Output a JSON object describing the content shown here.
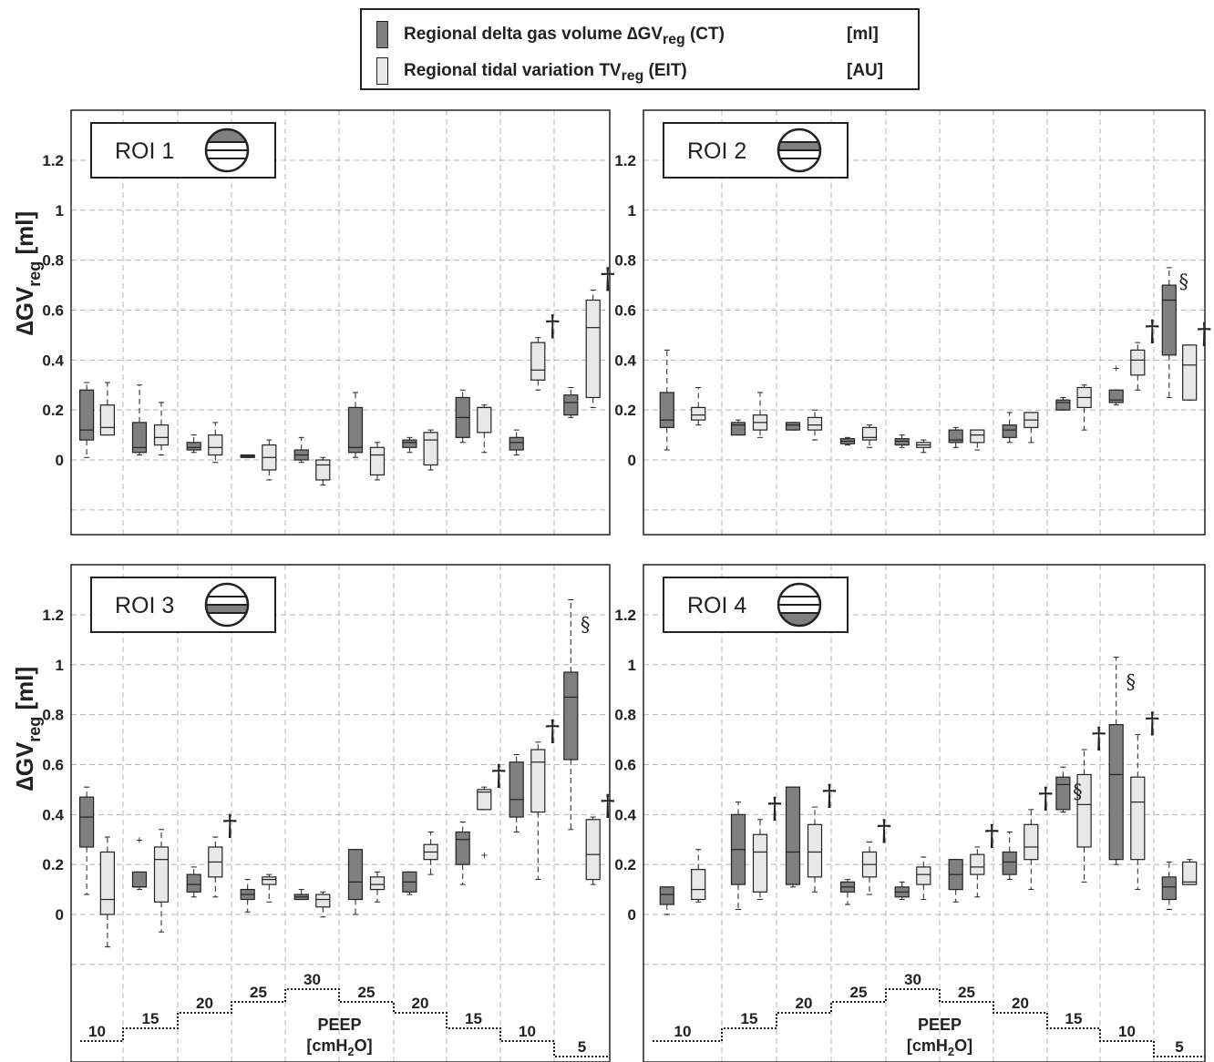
{
  "legend": {
    "items": [
      {
        "label_main": "Regional delta gas volume ∆GV",
        "label_sub": "reg",
        "label_tail": " (CT)",
        "unit": "[ml]",
        "color": "#808080"
      },
      {
        "label_main": "Regional tidal variation TV",
        "label_sub": "reg",
        "label_tail": " (EIT)",
        "unit": "[AU]",
        "color": "#e8e8e8"
      }
    ]
  },
  "colors": {
    "ct": "#808080",
    "eit": "#e8e8e8",
    "stroke": "#222222",
    "grid": "#b5b5b5"
  },
  "y_label_main": "∆GV",
  "y_label_sub": "reg",
  "y_label_unit": " [ml]",
  "peep_label": "PEEP",
  "peep_unit_main": "[cmH",
  "peep_unit_sub": "2",
  "peep_unit_tail": "O]",
  "chart_data": [
    {
      "type": "box",
      "title": "ROI 1",
      "roi_icon": "lung-section-icon-top",
      "ylim": [
        -0.3,
        1.4
      ],
      "y_ticks": [
        0,
        0.2,
        0.4,
        0.6,
        0.8,
        1,
        1.2
      ],
      "peep": [
        10,
        15,
        20,
        25,
        30,
        25,
        20,
        15,
        10,
        5
      ],
      "series": [
        {
          "name": "Regional delta gas volume (CT)",
          "boxes": [
            [
              0.01,
              0.08,
              0.12,
              0.28,
              0.31
            ],
            [
              0.02,
              0.03,
              0.05,
              0.15,
              0.3
            ],
            [
              0.03,
              0.04,
              0.05,
              0.07,
              0.1
            ],
            [
              0.01,
              0.01,
              0.015,
              0.02,
              0.02
            ],
            [
              -0.01,
              0.0,
              0.02,
              0.04,
              0.09
            ],
            [
              0.01,
              0.03,
              0.05,
              0.21,
              0.27
            ],
            [
              0.03,
              0.05,
              0.07,
              0.08,
              0.09
            ],
            [
              0.07,
              0.09,
              0.17,
              0.25,
              0.28
            ],
            [
              0.02,
              0.04,
              0.07,
              0.09,
              0.12
            ],
            [
              0.17,
              0.18,
              0.23,
              0.26,
              0.29
            ]
          ]
        },
        {
          "name": "Regional tidal variation (EIT)",
          "boxes": [
            [
              0.1,
              0.1,
              0.13,
              0.22,
              0.31
            ],
            [
              0.02,
              0.06,
              0.09,
              0.14,
              0.23
            ],
            [
              -0.01,
              0.02,
              0.05,
              0.1,
              0.15
            ],
            [
              -0.08,
              -0.04,
              0.01,
              0.06,
              0.08
            ],
            [
              -0.1,
              -0.08,
              -0.02,
              0.0,
              0.01
            ],
            [
              -0.08,
              -0.06,
              0.02,
              0.05,
              0.07
            ],
            [
              -0.04,
              -0.02,
              0.08,
              0.11,
              0.12
            ],
            [
              0.03,
              0.11,
              0.21,
              0.21,
              0.22
            ],
            [
              0.28,
              0.32,
              0.36,
              0.47,
              0.49
            ],
            [
              0.21,
              0.25,
              0.53,
              0.64,
              0.68
            ]
          ]
        }
      ],
      "marks": [
        {
          "group": 8,
          "series": 1,
          "symbol": "†"
        },
        {
          "group": 9,
          "series": 1,
          "symbol": "†"
        }
      ],
      "outliers": []
    },
    {
      "type": "box",
      "title": "ROI 2",
      "roi_icon": "lung-section-icon-upper-middle",
      "ylim": [
        -0.3,
        1.4
      ],
      "y_ticks": [
        0,
        0.2,
        0.4,
        0.6,
        0.8,
        1,
        1.2
      ],
      "peep": [
        10,
        15,
        20,
        25,
        30,
        25,
        20,
        15,
        10,
        5
      ],
      "series": [
        {
          "name": "Regional delta gas volume (CT)",
          "boxes": [
            [
              0.04,
              0.13,
              0.16,
              0.27,
              0.44
            ],
            [
              0.1,
              0.1,
              0.14,
              0.15,
              0.16
            ],
            [
              0.12,
              0.12,
              0.14,
              0.15,
              0.15
            ],
            [
              0.06,
              0.065,
              0.075,
              0.085,
              0.09
            ],
            [
              0.05,
              0.06,
              0.075,
              0.085,
              0.1
            ],
            [
              0.05,
              0.07,
              0.08,
              0.12,
              0.13
            ],
            [
              0.07,
              0.09,
              0.12,
              0.14,
              0.19
            ],
            [
              0.2,
              0.2,
              0.23,
              0.24,
              0.25
            ],
            [
              0.22,
              0.23,
              0.24,
              0.28,
              0.28
            ],
            [
              0.25,
              0.42,
              0.64,
              0.7,
              0.77
            ]
          ]
        },
        {
          "name": "Regional tidal variation (EIT)",
          "boxes": [
            [
              0.14,
              0.16,
              0.18,
              0.21,
              0.29
            ],
            [
              0.09,
              0.12,
              0.15,
              0.18,
              0.27
            ],
            [
              0.08,
              0.12,
              0.14,
              0.17,
              0.2
            ],
            [
              0.05,
              0.08,
              0.09,
              0.13,
              0.14
            ],
            [
              0.03,
              0.05,
              0.06,
              0.07,
              0.08
            ],
            [
              0.04,
              0.07,
              0.1,
              0.12,
              0.12
            ],
            [
              0.07,
              0.13,
              0.16,
              0.19,
              0.19
            ],
            [
              0.12,
              0.21,
              0.25,
              0.29,
              0.3
            ],
            [
              0.28,
              0.34,
              0.4,
              0.44,
              0.47
            ],
            [
              0.24,
              0.24,
              0.38,
              0.46,
              0.46
            ]
          ]
        }
      ],
      "marks": [
        {
          "group": 9,
          "series": 0,
          "symbol": "§"
        },
        {
          "group": 8,
          "series": 1,
          "symbol": "†"
        },
        {
          "group": 9,
          "series": 1,
          "symbol": "†"
        }
      ],
      "outliers": [
        {
          "group": 8,
          "series": 0,
          "value": 0.37
        }
      ]
    },
    {
      "type": "box",
      "title": "ROI 3",
      "roi_icon": "lung-section-icon-lower-middle",
      "ylim": [
        -0.3,
        1.4
      ],
      "y_ticks": [
        0,
        0.2,
        0.4,
        0.6,
        0.8,
        1,
        1.2
      ],
      "peep": [
        10,
        15,
        20,
        25,
        30,
        25,
        20,
        15,
        10,
        5
      ],
      "series": [
        {
          "name": "Regional delta gas volume (CT)",
          "boxes": [
            [
              0.08,
              0.27,
              0.39,
              0.47,
              0.51
            ],
            [
              0.1,
              0.11,
              0.11,
              0.17,
              0.17
            ],
            [
              0.07,
              0.09,
              0.12,
              0.16,
              0.19
            ],
            [
              0.01,
              0.06,
              0.08,
              0.1,
              0.14
            ],
            [
              0.06,
              0.06,
              0.07,
              0.08,
              0.1
            ],
            [
              0.0,
              0.06,
              0.13,
              0.26,
              0.26
            ],
            [
              0.08,
              0.09,
              0.13,
              0.17,
              0.17
            ],
            [
              0.12,
              0.2,
              0.3,
              0.33,
              0.37
            ],
            [
              0.33,
              0.39,
              0.46,
              0.61,
              0.64
            ],
            [
              0.34,
              0.62,
              0.87,
              0.97,
              1.26
            ]
          ]
        },
        {
          "name": "Regional tidal variation (EIT)",
          "boxes": [
            [
              -0.13,
              0.0,
              0.06,
              0.25,
              0.31
            ],
            [
              -0.07,
              0.05,
              0.22,
              0.27,
              0.34
            ],
            [
              0.07,
              0.15,
              0.21,
              0.27,
              0.31
            ],
            [
              0.05,
              0.12,
              0.14,
              0.15,
              0.16
            ],
            [
              -0.01,
              0.03,
              0.06,
              0.08,
              0.09
            ],
            [
              0.05,
              0.1,
              0.12,
              0.15,
              0.17
            ],
            [
              0.16,
              0.22,
              0.25,
              0.28,
              0.33
            ],
            [
              0.42,
              0.42,
              0.49,
              0.5,
              0.51
            ],
            [
              0.14,
              0.41,
              0.61,
              0.66,
              0.69
            ],
            [
              0.12,
              0.14,
              0.24,
              0.38,
              0.39
            ]
          ]
        }
      ],
      "marks": [
        {
          "group": 9,
          "series": 0,
          "symbol": "§"
        },
        {
          "group": 2,
          "series": 1,
          "symbol": "†"
        },
        {
          "group": 7,
          "series": 1,
          "symbol": "†"
        },
        {
          "group": 8,
          "series": 1,
          "symbol": "†"
        },
        {
          "group": 9,
          "series": 1,
          "symbol": "†"
        }
      ],
      "outliers": [
        {
          "group": 1,
          "series": 0,
          "value": 0.3
        },
        {
          "group": 7,
          "series": 1,
          "value": 0.24
        }
      ]
    },
    {
      "type": "box",
      "title": "ROI 4",
      "roi_icon": "lung-section-icon-bottom",
      "ylim": [
        -0.3,
        1.4
      ],
      "y_ticks": [
        0,
        0.2,
        0.4,
        0.6,
        0.8,
        1,
        1.2
      ],
      "peep": [
        10,
        15,
        20,
        25,
        30,
        25,
        20,
        15,
        10,
        5
      ],
      "series": [
        {
          "name": "Regional delta gas volume (CT)",
          "boxes": [
            [
              0.0,
              0.04,
              0.08,
              0.11,
              0.11
            ],
            [
              0.02,
              0.12,
              0.26,
              0.4,
              0.45
            ],
            [
              0.11,
              0.12,
              0.25,
              0.51,
              0.51
            ],
            [
              0.04,
              0.09,
              0.11,
              0.13,
              0.14
            ],
            [
              0.06,
              0.07,
              0.09,
              0.11,
              0.13
            ],
            [
              0.05,
              0.1,
              0.16,
              0.22,
              0.22
            ],
            [
              0.14,
              0.16,
              0.21,
              0.25,
              0.33
            ],
            [
              0.41,
              0.42,
              0.52,
              0.55,
              0.59
            ],
            [
              0.2,
              0.22,
              0.56,
              0.76,
              1.03
            ],
            [
              0.02,
              0.06,
              0.11,
              0.15,
              0.21
            ]
          ]
        },
        {
          "name": "Regional tidal variation (EIT)",
          "boxes": [
            [
              0.05,
              0.06,
              0.1,
              0.18,
              0.26
            ],
            [
              0.06,
              0.09,
              0.25,
              0.32,
              0.38
            ],
            [
              0.09,
              0.15,
              0.25,
              0.36,
              0.43
            ],
            [
              0.08,
              0.15,
              0.2,
              0.25,
              0.29
            ],
            [
              0.06,
              0.12,
              0.16,
              0.19,
              0.23
            ],
            [
              0.07,
              0.16,
              0.19,
              0.24,
              0.27
            ],
            [
              0.1,
              0.22,
              0.27,
              0.36,
              0.42
            ],
            [
              0.13,
              0.27,
              0.44,
              0.56,
              0.66
            ],
            [
              0.1,
              0.22,
              0.45,
              0.55,
              0.72
            ],
            [
              0.12,
              0.12,
              0.13,
              0.21,
              0.22
            ]
          ]
        }
      ],
      "marks": [
        {
          "group": 7,
          "series": 0,
          "symbol": "§"
        },
        {
          "group": 8,
          "series": 0,
          "symbol": "§"
        },
        {
          "group": 1,
          "series": 1,
          "symbol": "†"
        },
        {
          "group": 2,
          "series": 1,
          "symbol": "†"
        },
        {
          "group": 3,
          "series": 1,
          "symbol": "†"
        },
        {
          "group": 5,
          "series": 1,
          "symbol": "†"
        },
        {
          "group": 6,
          "series": 1,
          "symbol": "†"
        },
        {
          "group": 7,
          "series": 1,
          "symbol": "†"
        },
        {
          "group": 8,
          "series": 1,
          "symbol": "†"
        }
      ],
      "outliers": []
    }
  ]
}
